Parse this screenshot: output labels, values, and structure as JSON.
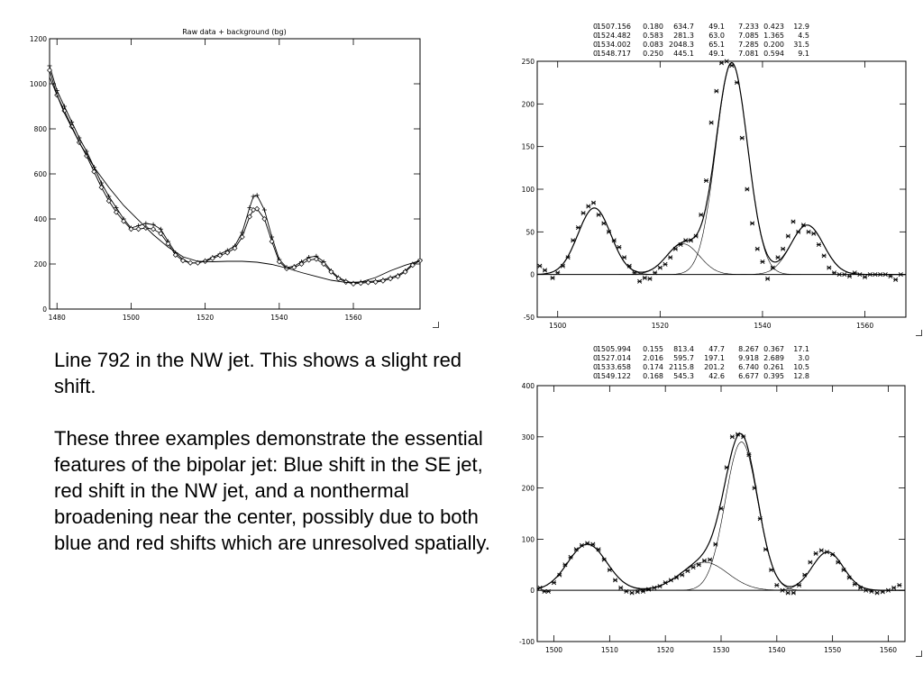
{
  "slide": {
    "caption_p1": "Line 792 in the NW jet.  This shows a slight red shift.",
    "caption_p2": "These three examples demonstrate the essential features of the bipolar jet: Blue shift in the SE jet, red shift in the NW jet, and a nonthermal broadening near the center, possibly due to both blue and red shifts which are unresolved spatially."
  },
  "chart_data": [
    {
      "id": "left",
      "type": "line",
      "title": "Raw data + background (bg)",
      "xlim": [
        1478,
        1578
      ],
      "ylim": [
        0,
        1200
      ],
      "x_ticks": [
        1480,
        1500,
        1520,
        1540,
        1560
      ],
      "y_ticks": [
        0,
        200,
        400,
        600,
        800,
        1000,
        1200
      ],
      "color": "#000000",
      "series": [
        {
          "marker": "plus",
          "x": [
            1478,
            1480,
            1482,
            1484,
            1486,
            1488,
            1490,
            1492,
            1494,
            1496,
            1498,
            1500,
            1502,
            1504,
            1506,
            1508,
            1510,
            1512,
            1514,
            1516,
            1518,
            1520,
            1522,
            1524,
            1526,
            1528,
            1530,
            1532,
            1533,
            1534,
            1536,
            1538,
            1540,
            1542,
            1544,
            1546,
            1548,
            1550,
            1552,
            1554,
            1556,
            1558,
            1560,
            1562,
            1564,
            1566,
            1568,
            1570,
            1572,
            1574,
            1576,
            1578
          ],
          "y": [
            1080,
            970,
            900,
            830,
            760,
            700,
            630,
            560,
            500,
            450,
            400,
            360,
            370,
            380,
            375,
            355,
            300,
            250,
            220,
            205,
            205,
            215,
            230,
            245,
            260,
            280,
            340,
            450,
            500,
            505,
            440,
            320,
            220,
            185,
            190,
            210,
            230,
            235,
            210,
            170,
            140,
            125,
            115,
            120,
            122,
            125,
            130,
            140,
            150,
            170,
            200,
            220
          ]
        },
        {
          "marker": "diamond",
          "x": [
            1478,
            1480,
            1482,
            1484,
            1486,
            1488,
            1490,
            1492,
            1494,
            1496,
            1498,
            1500,
            1502,
            1504,
            1506,
            1508,
            1510,
            1512,
            1514,
            1516,
            1518,
            1520,
            1522,
            1524,
            1526,
            1528,
            1530,
            1532,
            1533,
            1534,
            1536,
            1538,
            1540,
            1542,
            1544,
            1546,
            1548,
            1550,
            1552,
            1554,
            1556,
            1558,
            1560,
            1562,
            1564,
            1566,
            1568,
            1570,
            1572,
            1574,
            1576,
            1578
          ],
          "y": [
            1060,
            950,
            880,
            810,
            740,
            680,
            610,
            540,
            480,
            430,
            390,
            355,
            355,
            360,
            355,
            335,
            290,
            240,
            215,
            205,
            205,
            212,
            225,
            238,
            250,
            270,
            320,
            410,
            440,
            445,
            400,
            300,
            210,
            180,
            185,
            200,
            218,
            222,
            200,
            165,
            135,
            120,
            112,
            115,
            118,
            120,
            125,
            135,
            145,
            165,
            195,
            215
          ]
        },
        {
          "marker": "none",
          "name_hidden": true,
          "x": [
            1478,
            1482,
            1486,
            1490,
            1494,
            1498,
            1502,
            1506,
            1510,
            1514,
            1518,
            1522,
            1526,
            1530,
            1534,
            1538,
            1542,
            1546,
            1550,
            1554,
            1558,
            1562,
            1566,
            1570,
            1574,
            1578
          ],
          "y": [
            1030,
            870,
            740,
            630,
            540,
            460,
            395,
            330,
            275,
            232,
            212,
            210,
            212,
            212,
            208,
            198,
            182,
            162,
            145,
            128,
            118,
            120,
            140,
            170,
            195,
            215
          ]
        }
      ]
    },
    {
      "id": "top-right",
      "type": "scatter",
      "xlim": [
        1496,
        1568
      ],
      "ylim": [
        -50,
        250
      ],
      "x_ticks": [
        1500,
        1520,
        1540,
        1560
      ],
      "y_ticks": [
        -50,
        0,
        50,
        100,
        150,
        200,
        250
      ],
      "fit_table": [
        [
          "0",
          "1507.156",
          "0.180",
          "634.7",
          "49.1",
          "7.233",
          "0.423",
          "12.9"
        ],
        [
          "0",
          "1524.482",
          "0.583",
          "281.3",
          "63.0",
          "7.085",
          "1.365",
          "4.5"
        ],
        [
          "0",
          "1534.002",
          "0.083",
          "2048.3",
          "65.1",
          "7.285",
          "0.200",
          "31.5"
        ],
        [
          "0",
          "1548.717",
          "0.250",
          "445.1",
          "49.1",
          "7.081",
          "0.594",
          "9.1"
        ]
      ],
      "components": [
        {
          "center": 1507.156,
          "amplitude": 78,
          "sigma": 3.2
        },
        {
          "center": 1524.482,
          "amplitude": 36,
          "sigma": 3.2
        },
        {
          "center": 1534.002,
          "amplitude": 248,
          "sigma": 3.1
        },
        {
          "center": 1548.717,
          "amplitude": 58,
          "sigma": 3.2
        }
      ],
      "points": {
        "x": [
          1496.5,
          1497.5,
          1499,
          1500,
          1501,
          1502,
          1503,
          1504,
          1505,
          1506,
          1507,
          1508,
          1509,
          1510,
          1511,
          1512,
          1513,
          1514,
          1515,
          1516,
          1517,
          1518,
          1519,
          1520,
          1521,
          1522,
          1523,
          1524,
          1525,
          1526,
          1527,
          1528,
          1529,
          1530,
          1531,
          1532,
          1533,
          1534,
          1535,
          1536,
          1537,
          1538,
          1539,
          1540,
          1541,
          1542,
          1543,
          1544,
          1545,
          1546,
          1547,
          1548,
          1549,
          1550,
          1551,
          1552,
          1553,
          1554,
          1555,
          1556,
          1557,
          1558,
          1559,
          1560,
          1561,
          1562,
          1563,
          1564,
          1565,
          1566,
          1567
        ],
        "y": [
          10,
          5,
          -4,
          2,
          10,
          20,
          40,
          55,
          72,
          80,
          84,
          70,
          60,
          50,
          40,
          32,
          20,
          10,
          2,
          -8,
          -4,
          -5,
          2,
          8,
          12,
          20,
          30,
          35,
          40,
          40,
          45,
          70,
          110,
          178,
          215,
          248,
          250,
          245,
          225,
          160,
          100,
          60,
          30,
          15,
          -5,
          8,
          20,
          30,
          45,
          62,
          50,
          58,
          50,
          48,
          35,
          22,
          8,
          2,
          0,
          0,
          -2,
          2,
          0,
          -3,
          0,
          0,
          0,
          0,
          -2,
          -6,
          0
        ]
      }
    },
    {
      "id": "bottom-right",
      "type": "scatter",
      "xlim": [
        1497,
        1563
      ],
      "ylim": [
        -100,
        400
      ],
      "x_ticks": [
        1500,
        1510,
        1520,
        1530,
        1540,
        1550,
        1560
      ],
      "y_ticks": [
        -100,
        0,
        100,
        200,
        300,
        400
      ],
      "fit_table": [
        [
          "0",
          "1505.994",
          "0.155",
          "813.4",
          "47.7",
          "8.267",
          "0.367",
          "17.1"
        ],
        [
          "0",
          "1527.014",
          "2.016",
          "595.7",
          "197.1",
          "9.918",
          "2.689",
          "3.0"
        ],
        [
          "0",
          "1533.658",
          "0.174",
          "2115.8",
          "201.2",
          "6.740",
          "0.261",
          "10.5"
        ],
        [
          "0",
          "1549.122",
          "0.168",
          "545.3",
          "42.6",
          "6.677",
          "0.395",
          "12.8"
        ]
      ],
      "components": [
        {
          "center": 1505.994,
          "amplitude": 90,
          "sigma": 3.5
        },
        {
          "center": 1527.014,
          "amplitude": 55,
          "sigma": 4.2
        },
        {
          "center": 1533.658,
          "amplitude": 290,
          "sigma": 2.9
        },
        {
          "center": 1549.122,
          "amplitude": 75,
          "sigma": 2.8
        }
      ],
      "points": {
        "x": [
          1497.5,
          1498.3,
          1499,
          1500,
          1501,
          1502,
          1503,
          1504,
          1505,
          1506,
          1507,
          1508,
          1509,
          1510,
          1511,
          1512,
          1513,
          1514,
          1515,
          1516,
          1517,
          1518,
          1519,
          1520,
          1521,
          1522,
          1523,
          1524,
          1525,
          1526,
          1527,
          1528,
          1529,
          1530,
          1531,
          1532,
          1533,
          1534,
          1535,
          1536,
          1537,
          1538,
          1539,
          1540,
          1541,
          1542,
          1543,
          1544,
          1545,
          1546,
          1547,
          1548,
          1549,
          1550,
          1551,
          1552,
          1553,
          1554,
          1555,
          1556,
          1557,
          1558,
          1559,
          1560,
          1561,
          1562
        ],
        "y": [
          5,
          -2,
          -2,
          15,
          30,
          50,
          65,
          80,
          88,
          92,
          90,
          80,
          60,
          40,
          20,
          5,
          -2,
          -5,
          -3,
          -2,
          2,
          5,
          8,
          15,
          20,
          25,
          30,
          38,
          45,
          50,
          58,
          60,
          90,
          160,
          240,
          300,
          305,
          300,
          265,
          200,
          140,
          80,
          40,
          10,
          0,
          -5,
          -5,
          10,
          30,
          55,
          72,
          78,
          75,
          70,
          55,
          40,
          25,
          12,
          5,
          0,
          -2,
          -5,
          -3,
          0,
          5,
          10
        ]
      }
    }
  ]
}
